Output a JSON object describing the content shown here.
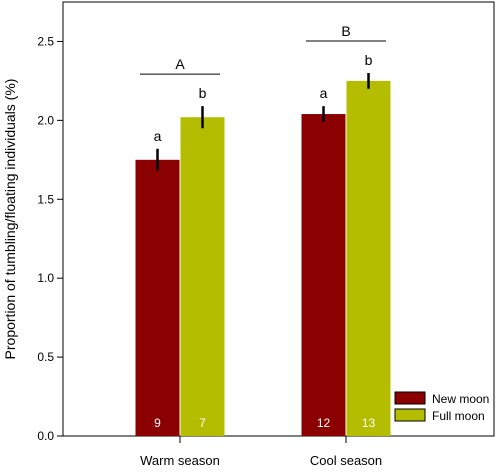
{
  "chart_data": {
    "type": "bar",
    "ylabel": "Proportion of tumbling/floating individuals (%)",
    "xlabel": "",
    "ylim": [
      0,
      2.75
    ],
    "yticks": [
      "0.0",
      "0.5",
      "1.0",
      "1.5",
      "2.0",
      "2.5"
    ],
    "grid": false,
    "legend_position": "bottom-right",
    "categories": [
      "Warm season",
      "Cool season"
    ],
    "series": [
      {
        "name": "New moon",
        "color": "#8b0000",
        "values": [
          1.75,
          2.04
        ],
        "error": [
          0.07,
          0.05
        ],
        "letters": [
          "a",
          "a"
        ],
        "n": [
          "9",
          "12"
        ]
      },
      {
        "name": "Full moon",
        "color": "#b5bd00",
        "values": [
          2.02,
          2.25
        ],
        "error": [
          0.07,
          0.05
        ],
        "letters": [
          "b",
          "b"
        ],
        "n": [
          "7",
          "13"
        ]
      }
    ],
    "group_letters": [
      "A",
      "B"
    ]
  }
}
